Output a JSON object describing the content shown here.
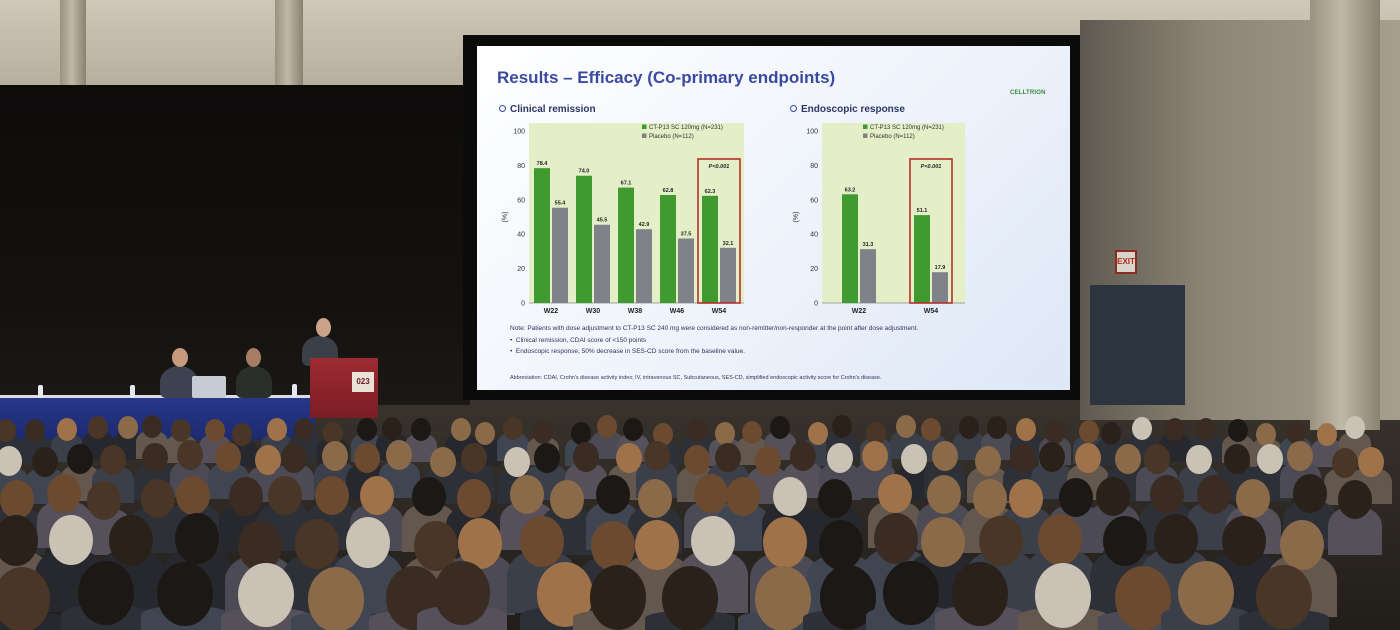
{
  "slide": {
    "title": "Results – Efficacy (Co-primary endpoints)",
    "logo_text": "CELLTRION",
    "left_section": "Clinical remission",
    "right_section": "Endoscopic response",
    "note_line": "Note: Patients with dose adjustment to CT-P13 SC 240 mg were considered as non-remitter/non-responder at the point after dose adjustment.",
    "bullet_1": "Clinical remission, CDAI score of <150 points",
    "bullet_2": "Endoscopic response, 50% decrease in SES-CD score from the baseline value.",
    "abbreviation": "Abbreviation: CDAI, Crohn's disease activity index; IV, intravenous SC, Subcutaneous, SES-CD, simplified endoscopic activity score for Crohn's disease."
  },
  "podium_label": "023",
  "exit_sign": "EXIT",
  "colors": {
    "treatment": "#3f9a2f",
    "placebo": "#7f8289",
    "highlight": "#b5302c",
    "chart_bg": "#e4efc8"
  },
  "chart_data": [
    {
      "type": "bar",
      "categories": [
        "W22",
        "W30",
        "W38",
        "W46",
        "W54"
      ],
      "series": [
        {
          "name": "CT-P13 SC 120mg (N=231)",
          "values": [
            78.4,
            74.0,
            67.1,
            62.8,
            62.3
          ]
        },
        {
          "name": "Placebo (N=112)",
          "values": [
            55.4,
            45.5,
            42.9,
            37.5,
            32.1
          ]
        }
      ],
      "ylabel": "(%)",
      "ylim": [
        0,
        100
      ],
      "yticks": [
        0,
        20,
        40,
        60,
        80,
        100
      ],
      "value_labels": [
        [
          "78.4",
          "74.0",
          "67.1",
          "62.8",
          "62.3"
        ],
        [
          "55.4",
          "45.5",
          "42.9",
          "37.5",
          "32.1"
        ]
      ],
      "highlight_category": "W54",
      "annotation": "P<0.001",
      "legend": "top-right"
    },
    {
      "type": "bar",
      "categories": [
        "W22",
        "W54"
      ],
      "series": [
        {
          "name": "CT-P13 SC 120mg (N=231)",
          "values": [
            63.2,
            51.1
          ]
        },
        {
          "name": "Placebo (N=112)",
          "values": [
            31.3,
            17.9
          ]
        }
      ],
      "ylabel": "(%)",
      "ylim": [
        0,
        100
      ],
      "yticks": [
        0,
        20,
        40,
        60,
        80,
        100
      ],
      "value_labels": [
        [
          "63.2",
          "51.1"
        ],
        [
          "31.3",
          "17.9"
        ]
      ],
      "highlight_category": "W54",
      "annotation": "P<0.001",
      "legend": "top-right"
    }
  ]
}
